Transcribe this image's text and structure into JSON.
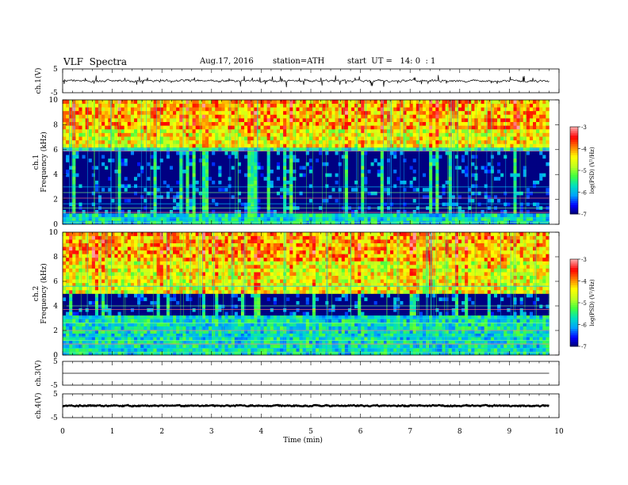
{
  "header": {
    "title": "VLF  Spectra",
    "date": "Aug.17, 2016",
    "station": "station=ATH",
    "start": "start  UT =   14: 0  : 1"
  },
  "colors": {
    "background": "#ffffff",
    "axis": "#000000",
    "waveform": "#000000",
    "spectrum_floor": "#000066",
    "colormap": [
      "#000066",
      "#0000ff",
      "#00a0ff",
      "#00e0c0",
      "#40ff40",
      "#c0ff20",
      "#ffff00",
      "#ff8000",
      "#ff0000",
      "#ffa0a0"
    ]
  },
  "chart_data": [
    {
      "type": "line",
      "id": "ch1-waveform",
      "ylabel": "ch.1(V)",
      "ylim": [
        -5,
        5
      ],
      "y_tick_labels": [
        "5",
        "-5"
      ],
      "xlim": [
        0,
        10
      ],
      "x_extent_min": 9.8,
      "mean_level": 0.0,
      "noise_amplitude": 0.45,
      "spike_amplitude": 1.6
    },
    {
      "type": "heatmap",
      "id": "ch1-spectrogram",
      "ylabel": "ch.1\nFrequency  (kHz)",
      "ylim": [
        0,
        10
      ],
      "y_ticks": [
        0,
        2,
        4,
        6,
        8,
        10
      ],
      "y_tick_labels": [
        "0",
        "2",
        "4",
        "6",
        "8",
        "10"
      ],
      "xlim": [
        0,
        10
      ],
      "x_extent_min": 9.8,
      "quiet_band_khz": [
        0.8,
        5.8
      ],
      "sferic_floor_khz": 5.9,
      "line_tones_khz": [
        0.15,
        0.5,
        0.95,
        1.3,
        1.65,
        2.1,
        2.55,
        3.0,
        5.9,
        6.05
      ],
      "colorbar": {
        "label": "log(PSD) (V²/Hz)",
        "range": [
          -7,
          -3
        ],
        "tick_labels": [
          "-3",
          "-4",
          "-5",
          "-6",
          "-7"
        ]
      }
    },
    {
      "type": "heatmap",
      "id": "ch2-spectrogram",
      "ylabel": "ch.2\nFrequency  (kHz)",
      "ylim": [
        0,
        10
      ],
      "y_ticks": [
        0,
        2,
        4,
        6,
        8,
        10
      ],
      "y_tick_labels": [
        "0",
        "2",
        "4",
        "6",
        "8",
        "10"
      ],
      "xlim": [
        0,
        10
      ],
      "x_extent_min": 9.8,
      "quiet_band_khz": [
        3.0,
        5.5
      ],
      "sferic_floor_khz": 5.0,
      "line_tones_khz": [
        0.2,
        0.55,
        0.9,
        1.2,
        1.5,
        2.0,
        2.6,
        3.0,
        3.7,
        4.0,
        5.6
      ],
      "colorbar": {
        "label": "log(PSD) (V²/Hz)",
        "range": [
          -7,
          -3
        ],
        "tick_labels": [
          "-3",
          "-4",
          "-5",
          "-6",
          "-7"
        ]
      }
    },
    {
      "type": "line",
      "id": "ch3-waveform",
      "ylabel": "ch.3(V)",
      "ylim": [
        -5,
        5
      ],
      "y_tick_labels": [
        "5",
        "-5"
      ],
      "xlim": [
        0,
        10
      ],
      "x_extent_min": 9.8,
      "mean_level": 0.0,
      "noise_amplitude": 0.0,
      "spike_amplitude": 0.0
    },
    {
      "type": "line",
      "id": "ch4-waveform",
      "ylabel": "ch.4(V)",
      "ylim": [
        -5,
        5
      ],
      "y_tick_labels": [
        "5",
        "-5"
      ],
      "xlim": [
        0,
        10
      ],
      "x_extent_min": 9.8,
      "mean_level": 0.0,
      "noise_amplitude": 0.25,
      "spike_amplitude": 0.0
    }
  ],
  "x_axis": {
    "label": "Time  (min)",
    "ticks": [
      0,
      1,
      2,
      3,
      4,
      5,
      6,
      7,
      8,
      9,
      10
    ],
    "tick_labels": [
      "0",
      "1",
      "2",
      "3",
      "4",
      "5",
      "6",
      "7",
      "8",
      "9",
      "10"
    ]
  }
}
